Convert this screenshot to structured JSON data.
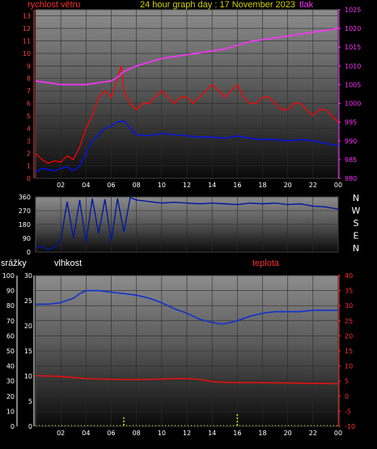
{
  "header": {
    "title": "24 hour graph day : 17 November 2023",
    "wind_label": "rychlost větru",
    "pressure_label": "tlak",
    "rain_label": "srážky",
    "humidity_label": "vlhkost",
    "temp_label": "teplota"
  },
  "colors": {
    "title": "#d4d400",
    "wind_gust": "#ff0000",
    "wind_avg": "#0010ff",
    "pressure": "#ff30ff",
    "direction": "#0018a0",
    "humidity": "#1030d0",
    "temperature": "#e01010",
    "rain": "#e8e800",
    "left_axis": "#ff4040",
    "rain_axis": "#ffffff",
    "humidity_axis": "#ffffff",
    "temp_axis": "#ff3030"
  },
  "compass": [
    "N",
    "W",
    "S",
    "E",
    "N"
  ],
  "chart_data": [
    {
      "type": "line",
      "name": "wind-and-pressure",
      "x_ticks": [
        "02",
        "04",
        "06",
        "08",
        "10",
        "12",
        "14",
        "16",
        "18",
        "20",
        "22",
        "00"
      ],
      "y_left_ticks": [
        "0",
        "1",
        "2",
        "3",
        "4",
        "5",
        "6",
        "7",
        "8",
        "9",
        "10",
        "11",
        "12",
        "13"
      ],
      "y_right_ticks": [
        "980",
        "985",
        "990",
        "995",
        "1000",
        "1005",
        "1010",
        "1015",
        "1020",
        "1025"
      ],
      "ylim_left": [
        0,
        13.5
      ],
      "ylim_right": [
        980,
        1025
      ],
      "x_range_hours": [
        0,
        24
      ],
      "series": [
        {
          "key": "gust",
          "x": [
            0,
            0.5,
            1,
            1.5,
            2,
            2.5,
            3,
            3.5,
            4,
            4.5,
            5,
            5.5,
            6,
            6.5,
            6.8,
            7,
            7.5,
            8,
            8.5,
            9,
            9.5,
            10,
            10.5,
            11,
            11.5,
            12,
            12.5,
            13,
            13.5,
            14,
            14.5,
            15,
            15.5,
            16,
            16.5,
            17,
            17.5,
            18,
            18.5,
            19,
            19.5,
            20,
            20.5,
            21,
            21.5,
            22,
            22.5,
            23,
            23.5,
            24
          ],
          "values": [
            2,
            1.5,
            1.2,
            1.4,
            1.3,
            1.8,
            1.5,
            2.5,
            4,
            5,
            6.5,
            7,
            6.5,
            8,
            9,
            7,
            6,
            5.5,
            6,
            6,
            6.5,
            7,
            6.5,
            6,
            6.5,
            6.5,
            6,
            6.5,
            7,
            7.5,
            7,
            6.5,
            7,
            7.5,
            6.5,
            6,
            6,
            6.5,
            6.5,
            6,
            5.5,
            5.5,
            6,
            6,
            5.5,
            5,
            5.5,
            5.5,
            5,
            4.5
          ]
        },
        {
          "key": "average",
          "x": [
            0,
            0.5,
            1,
            1.5,
            2,
            2.5,
            3,
            3.5,
            4,
            4.5,
            5,
            5.5,
            6,
            6.5,
            7,
            7.5,
            8,
            9,
            10,
            11,
            12,
            13,
            14,
            15,
            16,
            17,
            18,
            19,
            20,
            21,
            22,
            23,
            24
          ],
          "values": [
            0.5,
            0.8,
            0.7,
            0.6,
            0.8,
            0.9,
            0.6,
            1,
            2,
            3,
            3.5,
            4,
            4.2,
            4.5,
            4.6,
            4,
            3.5,
            3.4,
            3.6,
            3.5,
            3.4,
            3.3,
            3.3,
            3.2,
            3.4,
            3.2,
            3.1,
            3.1,
            3,
            3.1,
            3,
            2.8,
            2.6
          ]
        },
        {
          "key": "pressure",
          "x": [
            0,
            1,
            2,
            3,
            4,
            5,
            6,
            6.5,
            7,
            8,
            9,
            10,
            11,
            12,
            13,
            14,
            15,
            16,
            17,
            18,
            19,
            20,
            21,
            22,
            23,
            24
          ],
          "values": [
            1006,
            1005.5,
            1005,
            1005,
            1005,
            1005.5,
            1006,
            1007,
            1008.5,
            1010,
            1011,
            1012,
            1012.5,
            1013,
            1013.5,
            1014,
            1014.5,
            1015.5,
            1016.5,
            1017,
            1017.5,
            1018,
            1018.5,
            1019,
            1019.5,
            1020
          ]
        }
      ]
    },
    {
      "type": "line",
      "name": "wind-direction",
      "y_ticks": [
        "0",
        "90",
        "180",
        "270",
        "360"
      ],
      "ylim": [
        0,
        360
      ],
      "x_range_hours": [
        0,
        24
      ],
      "series": [
        {
          "key": "direction",
          "x": [
            0,
            0.5,
            1,
            1.5,
            2,
            2.5,
            3,
            3.5,
            4,
            4.5,
            5,
            5.5,
            6,
            6.5,
            7,
            7.5,
            8,
            9,
            10,
            11,
            12,
            13,
            14,
            15,
            16,
            17,
            18,
            19,
            20,
            21,
            22,
            23,
            24
          ],
          "values": [
            20,
            40,
            15,
            30,
            80,
            330,
            90,
            340,
            60,
            350,
            120,
            345,
            70,
            350,
            130,
            355,
            340,
            330,
            320,
            325,
            320,
            315,
            320,
            315,
            310,
            320,
            315,
            320,
            310,
            315,
            300,
            295,
            280
          ]
        }
      ]
    },
    {
      "type": "line",
      "name": "rain-humidity-temperature",
      "x_ticks": [
        "02",
        "04",
        "06",
        "08",
        "10",
        "12",
        "14",
        "16",
        "18",
        "20",
        "22",
        "00"
      ],
      "rain_ticks": [
        "0",
        "10",
        "20",
        "30",
        "40",
        "50",
        "60",
        "70",
        "80",
        "90",
        "100"
      ],
      "humidity_ticks": [
        "0",
        "5",
        "10",
        "15",
        "20",
        "25",
        "30"
      ],
      "temp_ticks": [
        "-10",
        "-5",
        "0",
        "5",
        "10",
        "15",
        "20",
        "25",
        "30",
        "35",
        "40"
      ],
      "ylim_rain": [
        0,
        100
      ],
      "ylim_temp": [
        -10,
        40
      ],
      "x_range_hours": [
        0,
        24
      ],
      "series": [
        {
          "key": "humidity",
          "x": [
            0,
            1,
            2,
            3,
            3.5,
            4,
            5,
            6,
            7,
            8,
            9,
            10,
            11,
            12,
            13,
            14,
            14.5,
            15,
            16,
            17,
            18,
            19,
            20,
            21,
            22,
            23,
            24
          ],
          "values": [
            81,
            81,
            82,
            85,
            88,
            90,
            90,
            89,
            88,
            87,
            85,
            82,
            78,
            75,
            71,
            69,
            68,
            68,
            70,
            73,
            75,
            76,
            76,
            76,
            77,
            77,
            77
          ]
        },
        {
          "key": "temperature",
          "x": [
            0,
            1,
            2,
            3,
            4,
            5,
            6,
            7,
            8,
            9,
            10,
            11,
            12,
            13,
            14,
            15,
            16,
            17,
            18,
            19,
            20,
            21,
            22,
            23,
            24
          ],
          "values": [
            6.8,
            6.7,
            6.5,
            6.2,
            5.8,
            5.7,
            5.6,
            5.5,
            5.5,
            5.6,
            5.7,
            5.8,
            5.8,
            5.6,
            4.8,
            4.6,
            4.5,
            4.5,
            4.5,
            4.4,
            4.4,
            4.3,
            4.2,
            4.2,
            4.1
          ]
        },
        {
          "key": "rain",
          "x": [
            7,
            16
          ],
          "values": [
            6,
            8
          ]
        }
      ]
    }
  ]
}
